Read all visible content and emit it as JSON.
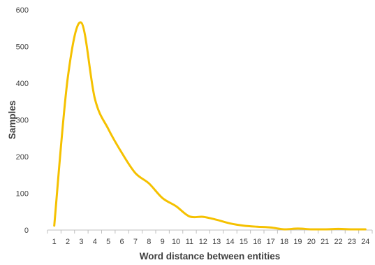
{
  "chart_data": {
    "type": "line",
    "xlabel": "Word distance between entities",
    "ylabel": "Samples",
    "x": [
      1,
      2,
      3,
      4,
      5,
      6,
      7,
      8,
      9,
      10,
      11,
      12,
      13,
      14,
      15,
      16,
      17,
      18,
      19,
      20,
      21,
      22,
      23,
      24
    ],
    "series": [
      {
        "values": [
          12,
          415,
          565,
          358,
          275,
          210,
          155,
          127,
          87,
          65,
          37,
          36,
          28,
          18,
          12,
          9,
          7,
          2,
          4,
          2,
          2,
          3,
          2,
          2
        ],
        "color": "#F5C100"
      }
    ],
    "ylim": [
      0,
      600
    ],
    "yticks": [
      0,
      100,
      200,
      300,
      400,
      500,
      600
    ],
    "grid": false,
    "legend": "none"
  }
}
